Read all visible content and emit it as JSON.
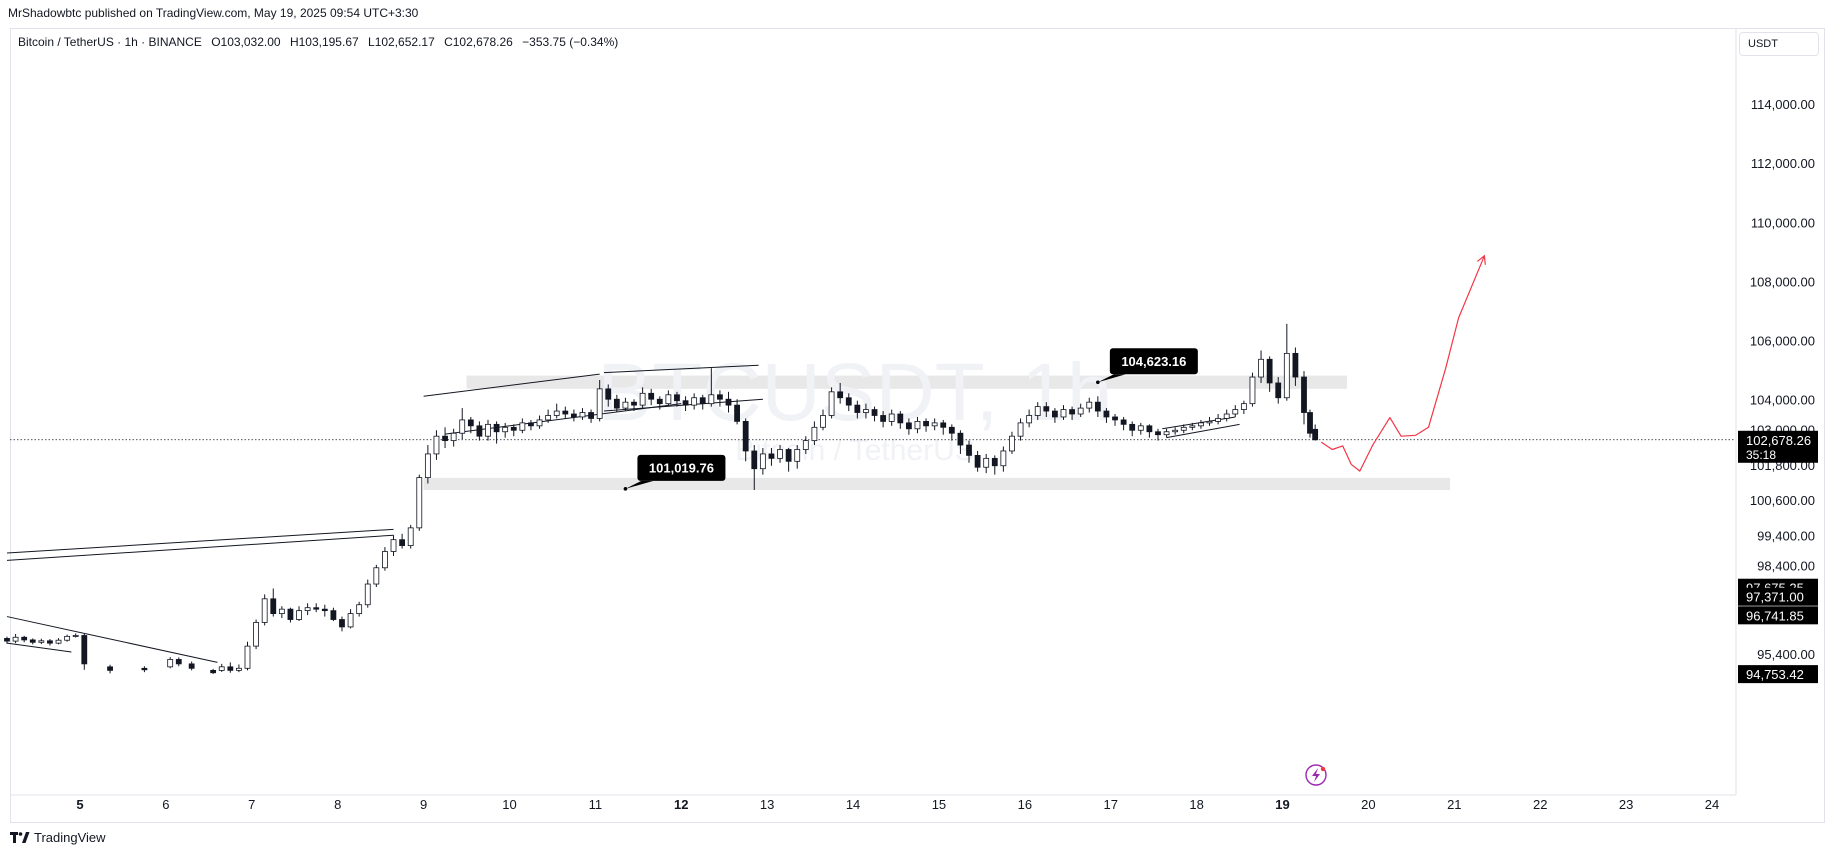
{
  "publish_line": "MrShadowbtc published on TradingView.com, May 19, 2025 09:54 UTC+3:30",
  "legend": {
    "symbol": "Bitcoin / TetherUS · 1h · BINANCE",
    "open": "O103,032.00",
    "high": "H103,195.67",
    "low": "L102,652.17",
    "close": "C102,678.26",
    "change": "−353.75 (−0.34%)"
  },
  "currency": "USDT",
  "watermark": {
    "ticker": "BTCUSDT, 1h",
    "name": "Bitcoin / TetherUS"
  },
  "footer": {
    "logo_text": "TradingView"
  },
  "colors": {
    "accent_red": "#f23645",
    "label_bg": "#000000",
    "zone": "#e8e8e8",
    "candle": "#131722"
  },
  "chart_data": {
    "type": "candlestick",
    "title": "",
    "xlabel": "",
    "ylabel": "",
    "ylim": [
      94100,
      115500
    ],
    "xlim": [
      4.15,
      24.4
    ],
    "x_ticks": [
      {
        "value": 5,
        "label": "5",
        "bold": true
      },
      {
        "value": 6,
        "label": "6",
        "bold": false
      },
      {
        "value": 7,
        "label": "7",
        "bold": false
      },
      {
        "value": 8,
        "label": "8",
        "bold": false
      },
      {
        "value": 9,
        "label": "9",
        "bold": false
      },
      {
        "value": 10,
        "label": "10",
        "bold": false
      },
      {
        "value": 11,
        "label": "11",
        "bold": false
      },
      {
        "value": 12,
        "label": "12",
        "bold": true
      },
      {
        "value": 13,
        "label": "13",
        "bold": false
      },
      {
        "value": 14,
        "label": "14",
        "bold": false
      },
      {
        "value": 15,
        "label": "15",
        "bold": false
      },
      {
        "value": 16,
        "label": "16",
        "bold": false
      },
      {
        "value": 17,
        "label": "17",
        "bold": false
      },
      {
        "value": 18,
        "label": "18",
        "bold": false
      },
      {
        "value": 19,
        "label": "19",
        "bold": true
      },
      {
        "value": 20,
        "label": "20",
        "bold": false
      },
      {
        "value": 21,
        "label": "21",
        "bold": false
      },
      {
        "value": 22,
        "label": "22",
        "bold": false
      },
      {
        "value": 23,
        "label": "23",
        "bold": false
      },
      {
        "value": 24,
        "label": "24",
        "bold": false
      }
    ],
    "y_ticks": [
      {
        "value": 114000,
        "label": "114,000.00"
      },
      {
        "value": 112000,
        "label": "112,000.00"
      },
      {
        "value": 110000,
        "label": "110,000.00"
      },
      {
        "value": 108000,
        "label": "108,000.00"
      },
      {
        "value": 106000,
        "label": "106,000.00"
      },
      {
        "value": 104000,
        "label": "104,000.00"
      },
      {
        "value": 103000,
        "label": "103,000.00"
      },
      {
        "value": 101800,
        "label": "101,800.00"
      },
      {
        "value": 100600,
        "label": "100,600.00"
      },
      {
        "value": 99400,
        "label": "99,400.00"
      },
      {
        "value": 98400,
        "label": "98,400.00"
      },
      {
        "value": 95400,
        "label": "95,400.00"
      }
    ],
    "price_badges": [
      {
        "value": 102678.26,
        "label": "102,678.26",
        "sub": "35:18"
      },
      {
        "value": 97675.25,
        "label": "97,675.25"
      },
      {
        "value": 97371.0,
        "label": "97,371.00"
      },
      {
        "value": 96741.85,
        "label": "96,741.85"
      },
      {
        "value": 94753.42,
        "label": "94,753.42"
      }
    ],
    "current_price": 102678.26,
    "annotations": [
      {
        "text": "104,623.16",
        "x": 16.85,
        "y": 104623.16
      },
      {
        "text": "101,019.76",
        "x": 11.35,
        "y": 101019.76
      }
    ],
    "zones": [
      {
        "x1": 9.5,
        "x2": 19.75,
        "y1": 104400,
        "y2": 104850
      },
      {
        "x1": 9.0,
        "x2": 20.95,
        "y1": 100980,
        "y2": 101390
      }
    ],
    "trendlines": [
      [
        [
          4.15,
          98850
        ],
        [
          8.65,
          99650
        ]
      ],
      [
        [
          4.15,
          98600
        ],
        [
          8.65,
          99450
        ]
      ],
      [
        [
          4.15,
          96700
        ],
        [
          6.6,
          95150
        ]
      ],
      [
        [
          4.15,
          95800
        ],
        [
          4.9,
          95500
        ]
      ],
      [
        [
          9.0,
          104150
        ],
        [
          11.05,
          104900
        ]
      ],
      [
        [
          9.25,
          102870
        ],
        [
          12.0,
          103900
        ]
      ],
      [
        [
          11.1,
          104950
        ],
        [
          12.9,
          105200
        ]
      ],
      [
        [
          11.1,
          103650
        ],
        [
          12.95,
          104050
        ]
      ],
      [
        [
          17.6,
          103050
        ],
        [
          18.45,
          103450
        ]
      ],
      [
        [
          17.65,
          102750
        ],
        [
          18.5,
          103200
        ]
      ]
    ],
    "projection": [
      [
        19.45,
        102600
      ],
      [
        19.58,
        102350
      ],
      [
        19.7,
        102470
      ],
      [
        19.8,
        101850
      ],
      [
        19.9,
        101620
      ],
      [
        20.05,
        102500
      ],
      [
        20.25,
        103430
      ],
      [
        20.38,
        102800
      ],
      [
        20.55,
        102830
      ],
      [
        20.7,
        103100
      ],
      [
        20.9,
        105100
      ],
      [
        21.05,
        106800
      ],
      [
        21.35,
        108900
      ]
    ],
    "candles": [
      [
        4.15,
        95960,
        95870,
        96020,
        95780
      ],
      [
        4.25,
        95870,
        96000,
        96110,
        95800
      ],
      [
        4.35,
        96000,
        95910,
        96050,
        95830
      ],
      [
        4.45,
        95910,
        95830,
        95960,
        95760
      ],
      [
        4.55,
        95830,
        95880,
        95950,
        95770
      ],
      [
        4.65,
        95880,
        95800,
        95940,
        95720
      ],
      [
        4.75,
        95800,
        95900,
        95970,
        95760
      ],
      [
        4.85,
        95900,
        96030,
        96090,
        95850
      ],
      [
        4.95,
        96030,
        96060,
        96130,
        95990
      ],
      [
        5.05,
        96060,
        95100,
        96110,
        94900
      ],
      [
        5.35,
        95000,
        94880,
        95070,
        94780
      ],
      [
        5.75,
        94950,
        94900,
        95020,
        94820
      ],
      [
        6.05,
        95000,
        95250,
        95330,
        94950
      ],
      [
        6.15,
        95250,
        95100,
        95320,
        95020
      ],
      [
        6.3,
        95100,
        94950,
        95180,
        94880
      ],
      [
        6.55,
        94880,
        94800,
        94930,
        94760
      ],
      [
        6.65,
        94880,
        95000,
        95100,
        94830
      ],
      [
        6.75,
        95000,
        94880,
        95150,
        94800
      ],
      [
        6.85,
        94880,
        94950,
        95080,
        94820
      ],
      [
        6.95,
        94950,
        95700,
        95850,
        94880
      ],
      [
        7.05,
        95700,
        96500,
        96600,
        95600
      ],
      [
        7.15,
        96500,
        97300,
        97450,
        96400
      ],
      [
        7.25,
        97300,
        96800,
        97650,
        96700
      ],
      [
        7.35,
        96800,
        96950,
        97050,
        96650
      ],
      [
        7.45,
        96950,
        96600,
        97000,
        96500
      ],
      [
        7.55,
        96600,
        96900,
        97050,
        96550
      ],
      [
        7.65,
        96900,
        97000,
        97150,
        96750
      ],
      [
        7.75,
        97000,
        96950,
        97150,
        96850
      ],
      [
        7.85,
        96950,
        96900,
        97100,
        96700
      ],
      [
        7.95,
        96900,
        96600,
        97000,
        96550
      ],
      [
        8.05,
        96600,
        96350,
        96700,
        96200
      ],
      [
        8.15,
        96350,
        96800,
        96950,
        96300
      ],
      [
        8.25,
        96800,
        97100,
        97200,
        96700
      ],
      [
        8.35,
        97100,
        97800,
        97950,
        97000
      ],
      [
        8.45,
        97800,
        98350,
        98450,
        97700
      ],
      [
        8.55,
        98350,
        98900,
        99050,
        98250
      ],
      [
        8.65,
        98900,
        99300,
        99450,
        98750
      ],
      [
        8.75,
        99300,
        99100,
        99500,
        99000
      ],
      [
        8.85,
        99100,
        99700,
        99800,
        99000
      ],
      [
        8.95,
        99700,
        101400,
        101500,
        99600
      ],
      [
        9.05,
        101400,
        102200,
        102500,
        101200
      ],
      [
        9.15,
        102200,
        102800,
        103000,
        102000
      ],
      [
        9.25,
        102800,
        102650,
        103100,
        102400
      ],
      [
        9.35,
        102650,
        102900,
        103050,
        102450
      ],
      [
        9.45,
        102900,
        103350,
        103750,
        102700
      ],
      [
        9.55,
        103350,
        103150,
        103450,
        102900
      ],
      [
        9.65,
        103150,
        102800,
        103300,
        102650
      ],
      [
        9.75,
        102800,
        103200,
        103350,
        102650
      ],
      [
        9.85,
        103200,
        102950,
        103300,
        102550
      ],
      [
        9.95,
        102950,
        103100,
        103250,
        102750
      ],
      [
        10.05,
        103100,
        103000,
        103200,
        102800
      ],
      [
        10.15,
        103000,
        103250,
        103400,
        102900
      ],
      [
        10.25,
        103250,
        103150,
        103350,
        103000
      ],
      [
        10.35,
        103150,
        103350,
        103500,
        103050
      ],
      [
        10.45,
        103350,
        103500,
        103700,
        103250
      ],
      [
        10.55,
        103500,
        103650,
        103900,
        103400
      ],
      [
        10.65,
        103650,
        103550,
        103800,
        103400
      ],
      [
        10.75,
        103550,
        103450,
        103700,
        103300
      ],
      [
        10.85,
        103450,
        103600,
        103750,
        103350
      ],
      [
        10.95,
        103600,
        103400,
        103700,
        103250
      ],
      [
        11.05,
        103400,
        104400,
        104700,
        103300
      ],
      [
        11.15,
        104400,
        104050,
        104550,
        103800
      ],
      [
        11.25,
        104050,
        103750,
        104200,
        103600
      ],
      [
        11.35,
        103750,
        103950,
        104100,
        103650
      ],
      [
        11.45,
        103950,
        103850,
        104050,
        103650
      ],
      [
        11.55,
        103850,
        104250,
        104450,
        103750
      ],
      [
        11.65,
        104250,
        104050,
        104400,
        103850
      ],
      [
        11.75,
        104050,
        103900,
        104150,
        103700
      ],
      [
        11.85,
        103900,
        104200,
        104350,
        103800
      ],
      [
        11.95,
        104200,
        104000,
        104300,
        103800
      ],
      [
        12.05,
        104000,
        103850,
        104150,
        103650
      ],
      [
        12.15,
        103850,
        104100,
        104250,
        103700
      ],
      [
        12.25,
        104100,
        103900,
        104200,
        103700
      ],
      [
        12.35,
        103900,
        104200,
        105100,
        103800
      ],
      [
        12.45,
        104200,
        104050,
        104350,
        103800
      ],
      [
        12.55,
        104050,
        103850,
        104300,
        103600
      ],
      [
        12.65,
        103850,
        103300,
        104050,
        103200
      ],
      [
        12.75,
        103300,
        102300,
        103400,
        101950
      ],
      [
        12.85,
        102300,
        101700,
        102500,
        100980
      ],
      [
        12.95,
        101700,
        102200,
        102400,
        101500
      ],
      [
        13.05,
        102200,
        102050,
        102400,
        101800
      ],
      [
        13.15,
        102050,
        102350,
        102500,
        101900
      ],
      [
        13.25,
        102350,
        101950,
        102400,
        101600
      ],
      [
        13.35,
        101950,
        102350,
        102500,
        101700
      ],
      [
        13.45,
        102350,
        102650,
        102800,
        102200
      ],
      [
        13.55,
        102650,
        103100,
        103300,
        102500
      ],
      [
        13.65,
        103100,
        103500,
        103700,
        103000
      ],
      [
        13.75,
        103500,
        104300,
        104450,
        103400
      ],
      [
        13.85,
        104300,
        104100,
        104600,
        103900
      ],
      [
        13.95,
        104100,
        103850,
        104250,
        103650
      ],
      [
        14.05,
        103850,
        103600,
        104000,
        103400
      ],
      [
        14.15,
        103600,
        103700,
        103900,
        103400
      ],
      [
        14.25,
        103700,
        103500,
        103800,
        103300
      ],
      [
        14.35,
        103500,
        103300,
        103650,
        103100
      ],
      [
        14.45,
        103300,
        103550,
        103700,
        103150
      ],
      [
        14.55,
        103550,
        103250,
        103650,
        103050
      ],
      [
        14.65,
        103250,
        103050,
        103400,
        102850
      ],
      [
        14.75,
        103050,
        103300,
        103450,
        102900
      ],
      [
        14.85,
        103300,
        103150,
        103400,
        102950
      ],
      [
        14.95,
        103150,
        103250,
        103400,
        103000
      ],
      [
        15.05,
        103250,
        103100,
        103350,
        102850
      ],
      [
        15.15,
        103100,
        102900,
        103200,
        102650
      ],
      [
        15.25,
        102900,
        102500,
        103000,
        102200
      ],
      [
        15.35,
        102500,
        102150,
        102650,
        101900
      ],
      [
        15.45,
        102150,
        101750,
        102300,
        101600
      ],
      [
        15.55,
        101750,
        102050,
        102200,
        101550
      ],
      [
        15.65,
        102050,
        101800,
        102150,
        101500
      ],
      [
        15.75,
        101800,
        102300,
        102450,
        101600
      ],
      [
        15.85,
        102300,
        102800,
        102950,
        102200
      ],
      [
        15.95,
        102800,
        103250,
        103400,
        102650
      ],
      [
        16.05,
        103250,
        103500,
        103700,
        103100
      ],
      [
        16.15,
        103500,
        103800,
        103950,
        103350
      ],
      [
        16.25,
        103800,
        103650,
        103950,
        103450
      ],
      [
        16.35,
        103650,
        103450,
        103750,
        103250
      ],
      [
        16.45,
        103450,
        103700,
        103850,
        103350
      ],
      [
        16.55,
        103700,
        103550,
        103800,
        103350
      ],
      [
        16.65,
        103550,
        103750,
        103900,
        103450
      ],
      [
        16.75,
        103750,
        103950,
        104100,
        103600
      ],
      [
        16.85,
        103950,
        103650,
        104150,
        103450
      ],
      [
        16.95,
        103650,
        103450,
        103750,
        103250
      ],
      [
        17.05,
        103450,
        103350,
        103550,
        103150
      ],
      [
        17.15,
        103350,
        103200,
        103450,
        103000
      ],
      [
        17.25,
        103200,
        103000,
        103300,
        102800
      ],
      [
        17.35,
        103000,
        103150,
        103250,
        102850
      ],
      [
        17.45,
        103150,
        102950,
        103200,
        102750
      ],
      [
        17.55,
        102950,
        102850,
        103050,
        102650
      ],
      [
        17.65,
        102850,
        102950,
        103050,
        102750
      ],
      [
        17.75,
        102950,
        103000,
        103100,
        102850
      ],
      [
        17.85,
        103000,
        103100,
        103200,
        102900
      ],
      [
        17.95,
        103100,
        103150,
        103250,
        103000
      ],
      [
        18.05,
        103150,
        103250,
        103350,
        103050
      ],
      [
        18.15,
        103250,
        103300,
        103450,
        103150
      ],
      [
        18.25,
        103300,
        103400,
        103550,
        103200
      ],
      [
        18.35,
        103400,
        103550,
        103700,
        103300
      ],
      [
        18.45,
        103550,
        103700,
        103850,
        103450
      ],
      [
        18.55,
        103700,
        103900,
        104000,
        103550
      ],
      [
        18.65,
        103900,
        104800,
        104950,
        103800
      ],
      [
        18.75,
        104800,
        105400,
        105700,
        104600
      ],
      [
        18.85,
        105400,
        104600,
        105500,
        104300
      ],
      [
        18.95,
        104600,
        104100,
        104800,
        103900
      ],
      [
        19.05,
        104100,
        105600,
        106600,
        104000
      ],
      [
        19.15,
        105600,
        104800,
        105800,
        104500
      ],
      [
        19.25,
        104800,
        103600,
        105000,
        103200
      ],
      [
        19.32,
        103600,
        102900,
        103700,
        102750
      ],
      [
        19.38,
        103032,
        102678.26,
        103195.67,
        102652.17
      ]
    ]
  }
}
